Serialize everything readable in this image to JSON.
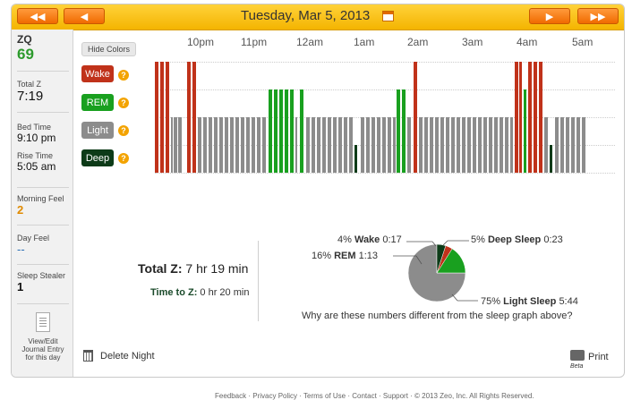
{
  "header": {
    "date": "Tuesday, Mar 5, 2013",
    "prev_prev": "◀◀",
    "prev": "◀",
    "next": "▶",
    "next_next": "▶▶"
  },
  "sidebar": {
    "zq_label": "ZQ",
    "zq_value": "69",
    "total_z_label": "Total Z",
    "total_z_value": "7:19",
    "bed_time_label": "Bed Time",
    "bed_time_value": "9:10 pm",
    "rise_time_label": "Rise Time",
    "rise_time_value": "5:05 am",
    "morning_feel_label": "Morning Feel",
    "morning_feel_value": "2",
    "day_feel_label": "Day Feel",
    "day_feel_value": "--",
    "sleep_stealer_label": "Sleep Stealer",
    "sleep_stealer_value": "1",
    "journal_label": "View/Edit Journal Entry for this day"
  },
  "graph": {
    "hide_colors": "Hide Colors",
    "times": [
      "10pm",
      "11pm",
      "12am",
      "1am",
      "2am",
      "3am",
      "4am",
      "5am"
    ],
    "stages": [
      "Wake",
      "REM",
      "Light",
      "Deep"
    ],
    "stage_colors": {
      "Wake": "#c0321a",
      "REM": "#19a01f",
      "Light": "#8c8c8c",
      "Deep": "#0d3b18"
    },
    "help": "?"
  },
  "summary": {
    "total_z_label": "Total Z:",
    "total_z_value": "7 hr 19 min",
    "time_to_z_label": "Time to Z:",
    "time_to_z_value": "0 hr 20 min",
    "wake_pct": "4%",
    "wake_name": "Wake",
    "wake_time": "0:17",
    "rem_pct": "16%",
    "rem_name": "REM",
    "rem_time": "1:13",
    "deep_pct": "5%",
    "deep_name": "Deep Sleep",
    "deep_time": "0:23",
    "light_pct": "75%",
    "light_name": "Light Sleep",
    "light_time": "5:44",
    "question": "Why are these numbers different from the sleep graph above?"
  },
  "chart_data": {
    "type": "pie",
    "categories": [
      "Light Sleep",
      "REM",
      "Wake",
      "Deep Sleep"
    ],
    "values": [
      75,
      16,
      4,
      5
    ],
    "colors": [
      "#8c8c8c",
      "#19a01f",
      "#c0321a",
      "#0d3b18"
    ]
  },
  "actions": {
    "delete": "Delete Night",
    "print": "Print",
    "beta": "Beta"
  },
  "footer": "Feedback · Privacy Policy · Terms of Use · Contact · Support · © 2013 Zeo, Inc. All Rights Reserved."
}
